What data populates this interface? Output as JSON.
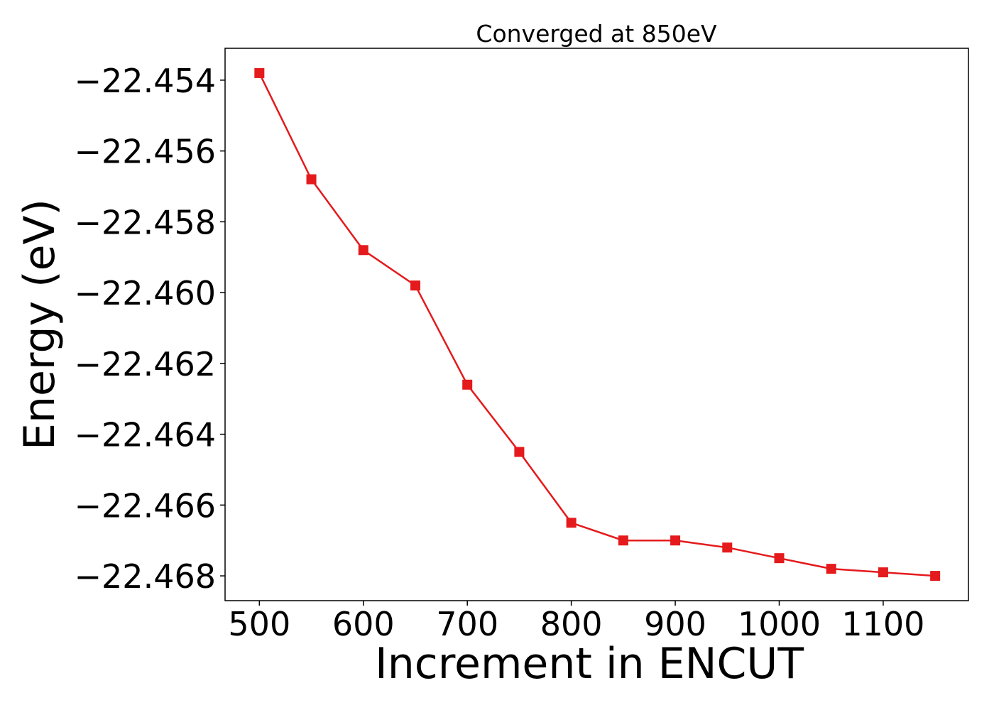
{
  "chart_data": {
    "type": "line",
    "title": "Converged at 850eV",
    "xlabel": "Increment in ENCUT",
    "ylabel": "Energy (eV)",
    "xlim": [
      467,
      1182
    ],
    "ylim": [
      -22.4687,
      -22.4531
    ],
    "xticks": [
      500,
      600,
      700,
      800,
      900,
      1000,
      1100
    ],
    "xtick_labels": [
      "500",
      "600",
      "700",
      "800",
      "900",
      "1000",
      "1100"
    ],
    "yticks": [
      -22.454,
      -22.456,
      -22.458,
      -22.46,
      -22.462,
      -22.464,
      -22.466,
      -22.468
    ],
    "ytick_labels": [
      "−22.454",
      "−22.456",
      "−22.458",
      "−22.460",
      "−22.462",
      "−22.464",
      "−22.466",
      "−22.468"
    ],
    "grid": false,
    "series": [
      {
        "color": "#e41a1c",
        "marker": "square",
        "x": [
          500,
          550,
          600,
          650,
          700,
          750,
          800,
          850,
          900,
          950,
          1000,
          1050,
          1100,
          1150
        ],
        "y": [
          -22.4538,
          -22.4568,
          -22.4588,
          -22.4598,
          -22.4626,
          -22.4645,
          -22.4665,
          -22.467,
          -22.467,
          -22.4672,
          -22.4675,
          -22.4678,
          -22.4679,
          -22.468
        ]
      }
    ]
  }
}
